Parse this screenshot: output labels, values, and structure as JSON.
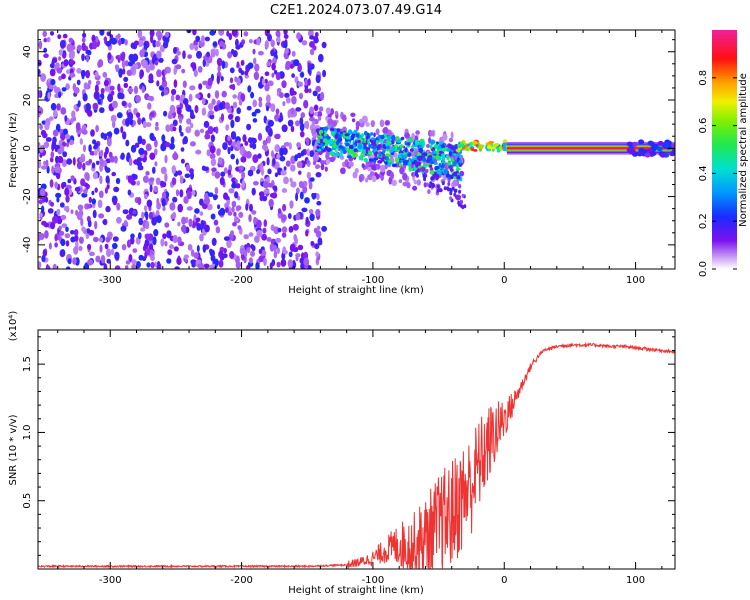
{
  "title": "C2E1.2024.073.07.49.G14",
  "chart_data": [
    {
      "type": "heatmap",
      "xlabel": "Height of straight line (km)",
      "ylabel": "Frequency (Hz)",
      "xlim": [
        -355,
        130
      ],
      "ylim": [
        -50,
        49
      ],
      "xticks": [
        -300,
        -200,
        -100,
        0,
        100
      ],
      "yticks": [
        -40,
        -20,
        0,
        20,
        40
      ],
      "colorbar": {
        "label": "Normalized spectral amplitude",
        "range": [
          0,
          1
        ],
        "ticks": [
          "0.0",
          "0.2",
          "0.4",
          "0.6",
          "0.8"
        ]
      },
      "regions": [
        {
          "x": [
            -355,
            -135
          ],
          "frequency_spread": [
            -50,
            49
          ],
          "amplitude": [
            0.05,
            0.2
          ],
          "pattern": "noise"
        },
        {
          "x": [
            -142,
            -35
          ],
          "frequency_center": [
            5,
            -10
          ],
          "amplitude": [
            0.2,
            0.5
          ],
          "pattern": "scattered signal"
        },
        {
          "x": [
            -35,
            0
          ],
          "frequency_center": [
            0,
            2
          ],
          "amplitude": [
            0.5,
            0.95
          ],
          "pattern": "converging tone"
        },
        {
          "x": [
            0,
            130
          ],
          "frequency_center": [
            0,
            0
          ],
          "amplitude": [
            0.9,
            1.0
          ],
          "pattern": "steady tone"
        }
      ]
    },
    {
      "type": "line",
      "xlabel": "Height of straight line (km)",
      "ylabel": "SNR (10 * v/v)",
      "exponent_label": "(x10⁴)",
      "xlim": [
        -355,
        130
      ],
      "ylim": [
        0,
        1.75
      ],
      "xticks": [
        -300,
        -200,
        -100,
        0,
        100
      ],
      "yticks": [
        0.5,
        1.0,
        1.5
      ],
      "ytick_labels": [
        "0.5",
        "1.0",
        "1.5"
      ],
      "series": [
        {
          "color": "#ee3333",
          "x": [
            -355,
            -300,
            -250,
            -200,
            -150,
            -120,
            -110,
            -100,
            -90,
            -80,
            -70,
            -60,
            -50,
            -40,
            -30,
            -25,
            -20,
            -15,
            -10,
            -5,
            0,
            5,
            10,
            15,
            20,
            25,
            30,
            40,
            50,
            60,
            70,
            80,
            90,
            100,
            110,
            120,
            130
          ],
          "y": [
            0.02,
            0.02,
            0.02,
            0.02,
            0.02,
            0.03,
            0.05,
            0.08,
            0.14,
            0.18,
            0.16,
            0.22,
            0.32,
            0.4,
            0.55,
            0.62,
            0.75,
            0.85,
            0.95,
            1.02,
            1.1,
            1.18,
            1.28,
            1.38,
            1.48,
            1.55,
            1.6,
            1.63,
            1.64,
            1.64,
            1.64,
            1.63,
            1.63,
            1.62,
            1.61,
            1.6,
            1.59
          ]
        }
      ]
    }
  ]
}
